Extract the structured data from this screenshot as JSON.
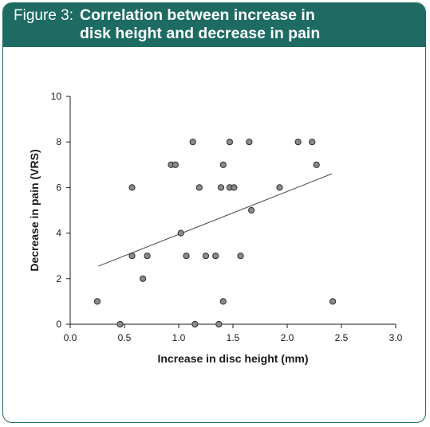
{
  "header": {
    "figure_label": "Figure 3:",
    "title_line1": "Correlation between increase in",
    "title_line2": "disk height and decrease in pain"
  },
  "colors": {
    "header_bg": "#1d6b63",
    "point_fill": "#8a8a8a",
    "point_stroke": "#2e2e2e",
    "axis": "#1a1a1a"
  },
  "chart_data": {
    "type": "scatter",
    "title": "Correlation between increase in disk height and decrease in pain",
    "xlabel": "Increase in disc height (mm)",
    "ylabel": "Decrease in pain (VRS)",
    "xlim": [
      0.0,
      3.0
    ],
    "ylim": [
      0,
      10
    ],
    "xticks": [
      "0.0",
      "0.5",
      "1.0",
      "1.5",
      "2.0",
      "2.5",
      "3.0"
    ],
    "yticks": [
      "0",
      "2",
      "4",
      "6",
      "8",
      "10"
    ],
    "grid": false,
    "points": [
      {
        "x": 0.25,
        "y": 1
      },
      {
        "x": 0.46,
        "y": 0
      },
      {
        "x": 0.57,
        "y": 6
      },
      {
        "x": 0.57,
        "y": 3
      },
      {
        "x": 0.67,
        "y": 2
      },
      {
        "x": 0.71,
        "y": 3
      },
      {
        "x": 0.93,
        "y": 7
      },
      {
        "x": 0.97,
        "y": 7
      },
      {
        "x": 1.02,
        "y": 4
      },
      {
        "x": 1.07,
        "y": 3
      },
      {
        "x": 1.13,
        "y": 8
      },
      {
        "x": 1.15,
        "y": 0
      },
      {
        "x": 1.19,
        "y": 6
      },
      {
        "x": 1.25,
        "y": 3
      },
      {
        "x": 1.34,
        "y": 3
      },
      {
        "x": 1.37,
        "y": 0
      },
      {
        "x": 1.39,
        "y": 6
      },
      {
        "x": 1.41,
        "y": 7
      },
      {
        "x": 1.41,
        "y": 1
      },
      {
        "x": 1.47,
        "y": 8
      },
      {
        "x": 1.47,
        "y": 6
      },
      {
        "x": 1.51,
        "y": 6
      },
      {
        "x": 1.57,
        "y": 3
      },
      {
        "x": 1.65,
        "y": 8
      },
      {
        "x": 1.67,
        "y": 5
      },
      {
        "x": 1.93,
        "y": 6
      },
      {
        "x": 2.1,
        "y": 8
      },
      {
        "x": 2.23,
        "y": 8
      },
      {
        "x": 2.27,
        "y": 7
      },
      {
        "x": 2.42,
        "y": 1
      }
    ],
    "trendline": {
      "x": [
        0.26,
        2.41
      ],
      "y": [
        2.55,
        6.6
      ]
    }
  }
}
